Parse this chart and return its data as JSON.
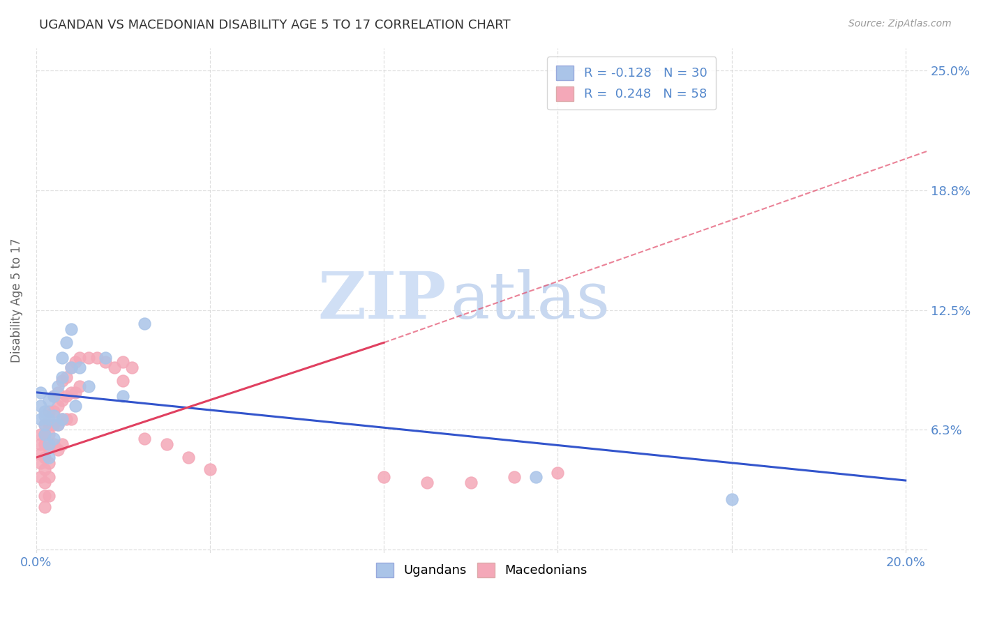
{
  "title": "UGANDAN VS MACEDONIAN DISABILITY AGE 5 TO 17 CORRELATION CHART",
  "source": "Source: ZipAtlas.com",
  "ylabel": "Disability Age 5 to 17",
  "xlim": [
    0.0,
    0.205
  ],
  "ylim": [
    -0.002,
    0.262
  ],
  "ugandan_color": "#aac4e8",
  "macedonian_color": "#f4a8b8",
  "ugandan_line_color": "#3355cc",
  "macedonian_line_color": "#e04060",
  "background_color": "#ffffff",
  "grid_color": "#d8d8d8",
  "title_color": "#333333",
  "label_color": "#5588cc",
  "watermark_zip_color": "#d0dff5",
  "watermark_atlas_color": "#c8d8f0",
  "ytick_positions": [
    0.0,
    0.0625,
    0.125,
    0.1875,
    0.25
  ],
  "ytick_labels": [
    "",
    "6.3%",
    "12.5%",
    "18.8%",
    "25.0%"
  ],
  "xtick_positions": [
    0.0,
    0.04,
    0.08,
    0.12,
    0.16,
    0.2
  ],
  "xtick_labels": [
    "0.0%",
    "",
    "",
    "",
    "",
    "20.0%"
  ],
  "ug_line_x0": 0.0,
  "ug_line_y0": 0.082,
  "ug_line_x1": 0.2,
  "ug_line_y1": 0.036,
  "mac_line_solid_x0": 0.0,
  "mac_line_solid_y0": 0.048,
  "mac_line_solid_x1": 0.08,
  "mac_line_solid_y1": 0.108,
  "mac_line_dash_x0": 0.08,
  "mac_line_dash_y0": 0.108,
  "mac_line_dash_x1": 0.205,
  "mac_line_dash_y1": 0.208,
  "ugandan_x": [
    0.001,
    0.001,
    0.001,
    0.002,
    0.002,
    0.002,
    0.002,
    0.003,
    0.003,
    0.003,
    0.003,
    0.004,
    0.004,
    0.004,
    0.005,
    0.005,
    0.006,
    0.006,
    0.006,
    0.007,
    0.008,
    0.008,
    0.009,
    0.01,
    0.012,
    0.016,
    0.02,
    0.025,
    0.115,
    0.16
  ],
  "ugandan_y": [
    0.068,
    0.075,
    0.082,
    0.07,
    0.06,
    0.072,
    0.065,
    0.078,
    0.068,
    0.055,
    0.048,
    0.08,
    0.07,
    0.058,
    0.085,
    0.065,
    0.1,
    0.09,
    0.068,
    0.108,
    0.115,
    0.095,
    0.075,
    0.095,
    0.085,
    0.1,
    0.08,
    0.118,
    0.038,
    0.026
  ],
  "macedonian_x": [
    0.001,
    0.001,
    0.001,
    0.001,
    0.001,
    0.002,
    0.002,
    0.002,
    0.002,
    0.002,
    0.002,
    0.002,
    0.002,
    0.003,
    0.003,
    0.003,
    0.003,
    0.003,
    0.003,
    0.003,
    0.004,
    0.004,
    0.004,
    0.004,
    0.005,
    0.005,
    0.005,
    0.005,
    0.006,
    0.006,
    0.006,
    0.006,
    0.007,
    0.007,
    0.007,
    0.008,
    0.008,
    0.008,
    0.009,
    0.009,
    0.01,
    0.01,
    0.012,
    0.014,
    0.016,
    0.018,
    0.02,
    0.02,
    0.022,
    0.025,
    0.03,
    0.035,
    0.04,
    0.08,
    0.09,
    0.1,
    0.11,
    0.12
  ],
  "macedonian_y": [
    0.06,
    0.055,
    0.05,
    0.045,
    0.038,
    0.065,
    0.06,
    0.055,
    0.048,
    0.042,
    0.035,
    0.028,
    0.022,
    0.072,
    0.065,
    0.06,
    0.053,
    0.045,
    0.038,
    0.028,
    0.08,
    0.072,
    0.065,
    0.055,
    0.082,
    0.075,
    0.065,
    0.052,
    0.088,
    0.078,
    0.068,
    0.055,
    0.09,
    0.08,
    0.068,
    0.095,
    0.082,
    0.068,
    0.098,
    0.082,
    0.1,
    0.085,
    0.1,
    0.1,
    0.098,
    0.095,
    0.098,
    0.088,
    0.095,
    0.058,
    0.055,
    0.048,
    0.042,
    0.038,
    0.035,
    0.035,
    0.038,
    0.04
  ]
}
